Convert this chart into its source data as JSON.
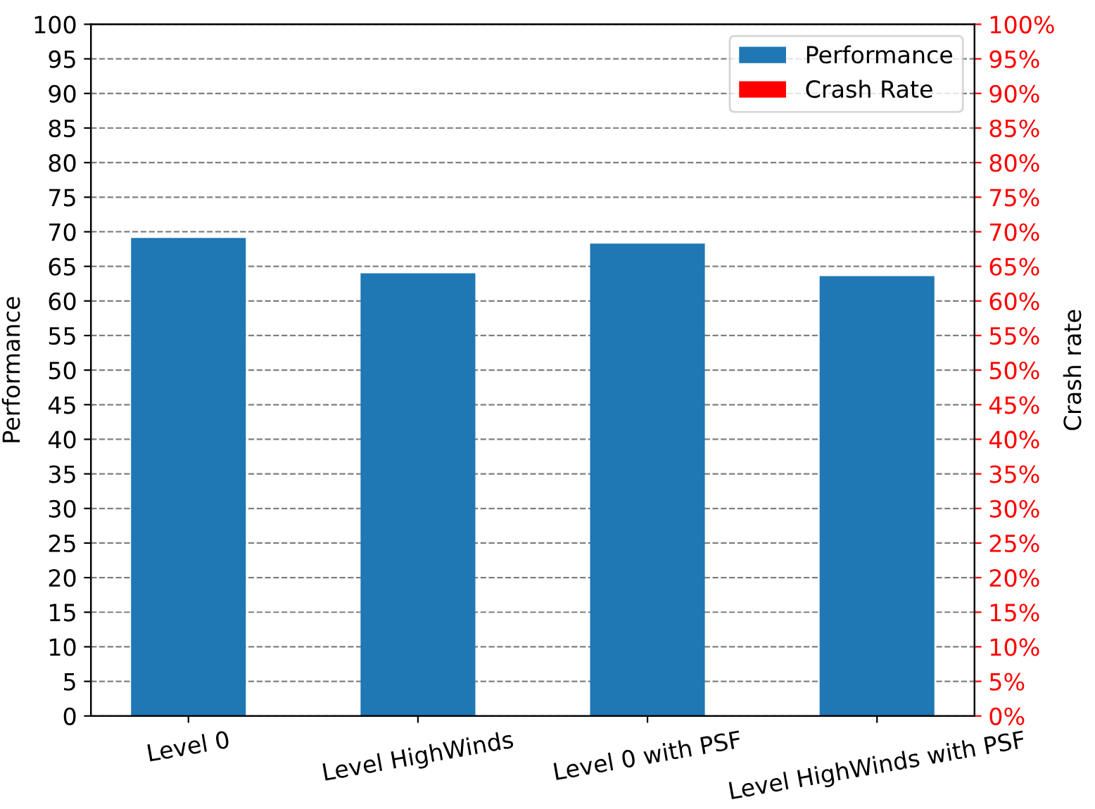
{
  "chart_data": {
    "type": "bar",
    "categories": [
      "Level 0",
      "Level HighWinds",
      "Level 0 with PSF",
      "Level HighWinds with PSF"
    ],
    "series": [
      {
        "name": "Performance",
        "color": "#1f77b4",
        "values": [
          69.1,
          64.0,
          68.3,
          63.6
        ]
      },
      {
        "name": "Crash Rate",
        "color": "#ff0000",
        "axis": "y2",
        "values": [
          0,
          0,
          0,
          0
        ]
      }
    ],
    "ylabel": "Performance",
    "y2label": "Crash rate",
    "ylim": [
      0,
      100
    ],
    "yticks": [
      0,
      5,
      10,
      15,
      20,
      25,
      30,
      35,
      40,
      45,
      50,
      55,
      60,
      65,
      70,
      75,
      80,
      85,
      90,
      95,
      100
    ],
    "y2lim": [
      0,
      100
    ],
    "y2ticks": [
      {
        "value": 0,
        "label": "0%"
      },
      {
        "value": 5,
        "label": "5%"
      },
      {
        "value": 10,
        "label": "10%"
      },
      {
        "value": 15,
        "label": "15%"
      },
      {
        "value": 20,
        "label": "20%"
      },
      {
        "value": 25,
        "label": "25%"
      },
      {
        "value": 30,
        "label": "30%"
      },
      {
        "value": 35,
        "label": "35%"
      },
      {
        "value": 40,
        "label": "40%"
      },
      {
        "value": 45,
        "label": "45%"
      },
      {
        "value": 50,
        "label": "50%"
      },
      {
        "value": 55,
        "label": "55%"
      },
      {
        "value": 60,
        "label": "60%"
      },
      {
        "value": 65,
        "label": "65%"
      },
      {
        "value": 70,
        "label": "70%"
      },
      {
        "value": 75,
        "label": "75%"
      },
      {
        "value": 80,
        "label": "80%"
      },
      {
        "value": 85,
        "label": "85%"
      },
      {
        "value": 90,
        "label": "90%"
      },
      {
        "value": 95,
        "label": "95%"
      },
      {
        "value": 100,
        "label": "100%"
      }
    ],
    "grid": "y",
    "legend": "top right"
  }
}
